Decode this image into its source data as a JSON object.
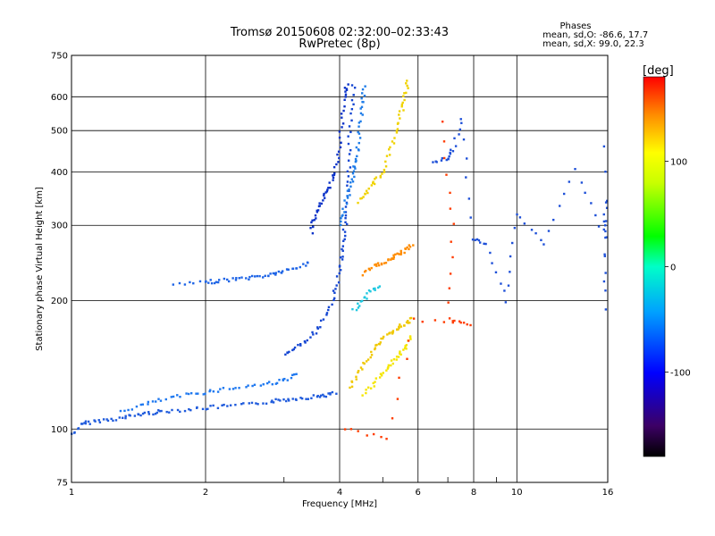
{
  "chart_data": {
    "type": "scatter",
    "title": "Tromsø 20150608 02:32:00–02:33:43",
    "subtitle": "RwPretec (8p)",
    "xlabel": "Frequency [MHz]",
    "ylabel": "Stationary phase Virtual Height [km]",
    "x_scale": "log",
    "y_scale": "log",
    "xlim": [
      1,
      16
    ],
    "ylim": [
      75,
      750
    ],
    "x_ticks": [
      1,
      2,
      4,
      6,
      8,
      10,
      16
    ],
    "x_tick_labels": [
      "1",
      "2",
      "4",
      "6",
      "8",
      "10",
      "16"
    ],
    "x_minor_ticks": [
      3,
      5,
      7,
      9
    ],
    "y_ticks": [
      75,
      100,
      200,
      300,
      400,
      500,
      600,
      750
    ],
    "y_tick_labels": [
      "75",
      "100",
      "200",
      "300",
      "400",
      "500",
      "600",
      "750"
    ],
    "grid": true,
    "colorbar": {
      "label": "[deg]",
      "range": [
        -180,
        180
      ],
      "ticks": [
        100,
        0,
        -100
      ],
      "tick_labels": [
        "100",
        "0",
        "-100"
      ]
    },
    "stats": {
      "heading": "Phases",
      "line_o": "mean, sd,O: -86.6, 17.7",
      "line_x": "mean, sd,X:  99.0, 22.3"
    },
    "traces": [
      {
        "name": "o-low",
        "color": "#1e5adc",
        "points": [
          [
            1.0,
            96
          ],
          [
            1.05,
            102
          ],
          [
            1.1,
            104
          ],
          [
            1.2,
            105
          ],
          [
            1.3,
            106
          ],
          [
            1.4,
            108
          ],
          [
            1.5,
            109
          ],
          [
            1.6,
            110
          ],
          [
            1.8,
            111
          ],
          [
            2.0,
            112
          ],
          [
            2.2,
            113
          ],
          [
            2.5,
            114
          ],
          [
            2.8,
            116
          ],
          [
            3.0,
            117
          ],
          [
            3.2,
            118
          ],
          [
            3.5,
            119
          ],
          [
            3.7,
            120
          ],
          [
            3.9,
            121
          ]
        ]
      },
      {
        "name": "o-low-2",
        "color": "#1e78f0",
        "points": [
          [
            1.3,
            110
          ],
          [
            1.45,
            114
          ],
          [
            1.6,
            117
          ],
          [
            1.8,
            120
          ],
          [
            2.0,
            122
          ],
          [
            2.2,
            124
          ],
          [
            2.5,
            126
          ],
          [
            2.8,
            128
          ],
          [
            3.0,
            130
          ],
          [
            3.2,
            134
          ]
        ]
      },
      {
        "name": "o-e",
        "color": "#1e64e6",
        "points": [
          [
            1.7,
            218
          ],
          [
            2.0,
            220
          ],
          [
            2.1,
            222
          ],
          [
            2.3,
            224
          ],
          [
            2.5,
            226
          ],
          [
            2.7,
            228
          ],
          [
            2.85,
            231
          ],
          [
            3.0,
            234
          ],
          [
            3.2,
            238
          ],
          [
            3.4,
            245
          ]
        ]
      },
      {
        "name": "o-f2",
        "color": "#1446d2",
        "points": [
          [
            3.0,
            150
          ],
          [
            3.2,
            155
          ],
          [
            3.4,
            162
          ],
          [
            3.6,
            172
          ],
          [
            3.8,
            190
          ],
          [
            3.9,
            210
          ],
          [
            4.0,
            235
          ],
          [
            4.05,
            260
          ],
          [
            4.1,
            290
          ],
          [
            4.15,
            320
          ],
          [
            4.2,
            380
          ],
          [
            4.2,
            450
          ],
          [
            4.25,
            550
          ],
          [
            4.3,
            640
          ]
        ]
      },
      {
        "name": "o-f2-b",
        "color": "#0a32c8",
        "points": [
          [
            3.45,
            290
          ],
          [
            3.5,
            310
          ],
          [
            3.6,
            330
          ],
          [
            3.7,
            350
          ],
          [
            3.8,
            370
          ],
          [
            3.9,
            400
          ],
          [
            4.0,
            450
          ],
          [
            4.05,
            520
          ],
          [
            4.1,
            600
          ],
          [
            4.15,
            640
          ]
        ]
      },
      {
        "name": "o-f2-c",
        "color": "#1e7ce8",
        "points": [
          [
            4.0,
            300
          ],
          [
            4.1,
            330
          ],
          [
            4.2,
            360
          ],
          [
            4.3,
            390
          ],
          [
            4.35,
            420
          ],
          [
            4.4,
            460
          ],
          [
            4.45,
            520
          ],
          [
            4.5,
            580
          ],
          [
            4.55,
            630
          ]
        ]
      },
      {
        "name": "x-f1",
        "color": "#f0c800",
        "points": [
          [
            4.2,
            125
          ],
          [
            4.4,
            135
          ],
          [
            4.6,
            145
          ],
          [
            4.8,
            155
          ],
          [
            5.0,
            162
          ],
          [
            5.2,
            168
          ],
          [
            5.4,
            172
          ],
          [
            5.6,
            176
          ],
          [
            5.8,
            182
          ]
        ]
      },
      {
        "name": "x-f1-b",
        "color": "#f5e600",
        "points": [
          [
            4.5,
            120
          ],
          [
            4.8,
            128
          ],
          [
            5.0,
            135
          ],
          [
            5.2,
            142
          ],
          [
            5.4,
            148
          ],
          [
            5.6,
            155
          ],
          [
            5.8,
            165
          ]
        ]
      },
      {
        "name": "x-mid",
        "color": "#ff8c00",
        "points": [
          [
            4.5,
            230
          ],
          [
            4.8,
            240
          ],
          [
            5.0,
            245
          ],
          [
            5.2,
            250
          ],
          [
            5.4,
            255
          ],
          [
            5.6,
            262
          ],
          [
            5.8,
            270
          ]
        ]
      },
      {
        "name": "x-f2",
        "color": "#f0d200",
        "points": [
          [
            4.4,
            340
          ],
          [
            4.6,
            360
          ],
          [
            4.8,
            380
          ],
          [
            5.0,
            400
          ],
          [
            5.2,
            450
          ],
          [
            5.4,
            500
          ],
          [
            5.5,
            550
          ],
          [
            5.6,
            600
          ],
          [
            5.7,
            650
          ]
        ]
      },
      {
        "name": "mid-cyan",
        "color": "#20c8e0",
        "points": [
          [
            4.3,
            190
          ],
          [
            4.5,
            200
          ],
          [
            4.7,
            210
          ],
          [
            4.9,
            215
          ]
        ]
      },
      {
        "name": "scatter",
        "color": "#1e50d8",
        "points": [
          [
            6.5,
            420
          ],
          [
            7.0,
            430
          ],
          [
            7.2,
            450
          ],
          [
            7.5,
            530
          ],
          [
            8.0,
            280
          ],
          [
            8.5,
            270
          ],
          [
            9.5,
            200
          ],
          [
            10.0,
            320
          ],
          [
            11.5,
            270
          ],
          [
            13.5,
            405
          ],
          [
            15.8,
            280
          ],
          [
            15.8,
            340
          ],
          [
            15.8,
            190
          ],
          [
            15.8,
            460
          ]
        ]
      },
      {
        "name": "scatter-warm",
        "color": "#ff3c00",
        "points": [
          [
            6.8,
            520
          ],
          [
            7.2,
            300
          ],
          [
            7.0,
            180
          ],
          [
            7.9,
            175
          ],
          [
            5.9,
            180
          ],
          [
            5.1,
            95
          ],
          [
            4.1,
            100
          ]
        ]
      }
    ]
  }
}
